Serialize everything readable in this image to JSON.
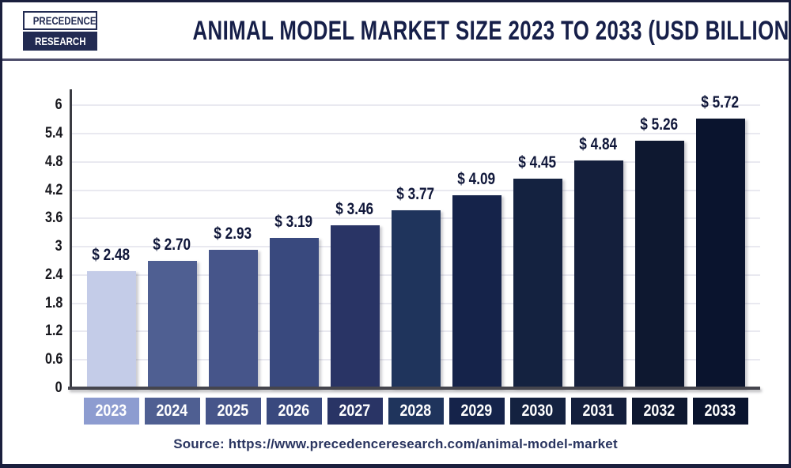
{
  "header": {
    "logo": {
      "line1": "PRECEDENCE",
      "line2": "RESEARCH"
    },
    "title": "ANIMAL MODEL MARKET SIZE 2023 TO 2033 (USD BILLION)"
  },
  "footer": {
    "source_text": "Source: https://www.precedenceresearch.com/animal-model-market"
  },
  "colors": {
    "frame_border": "#1a1f3d",
    "header_divider": "#4d4d6b",
    "title_text": "#161f49",
    "axis_line": "#3a3b42",
    "baseline": "#45454d",
    "gridline": "#e9e9f0",
    "tick_text": "#17171d",
    "value_label_text": "#10173a",
    "year_label_text": "#ffffff",
    "source_text": "#2a3560"
  },
  "chart_data": {
    "type": "bar",
    "title": "Animal Model Market Size 2023 to 2033 (USD Billion)",
    "unit": "USD Billion",
    "categories": [
      "2023",
      "2024",
      "2025",
      "2026",
      "2027",
      "2028",
      "2029",
      "2030",
      "2031",
      "2032",
      "2033"
    ],
    "values": [
      2.48,
      2.7,
      2.93,
      3.19,
      3.46,
      3.77,
      4.09,
      4.45,
      4.84,
      5.26,
      5.72
    ],
    "value_labels": [
      "$ 2.48",
      "$ 2.70",
      "$ 2.93",
      "$ 3.19",
      "$ 3.46",
      "$ 3.77",
      "$ 4.09",
      "$ 4.45",
      "$ 4.84",
      "$ 5.26",
      "$ 5.72"
    ],
    "bar_colors": [
      "#c4cce8",
      "#4f5f92",
      "#46558a",
      "#39497e",
      "#293465",
      "#1f345c",
      "#15234a",
      "#142240",
      "#141f3c",
      "#0e1830",
      "#0a142e"
    ],
    "category_box_colors": [
      "#8d9cd0",
      "#4f5f92",
      "#46558a",
      "#39497e",
      "#293465",
      "#1f345c",
      "#15234a",
      "#142240",
      "#141f3c",
      "#0e1830",
      "#0a142e"
    ],
    "xlabel": "",
    "ylabel": "",
    "ylim": [
      0,
      6
    ],
    "ytick_step": 0.6,
    "ytick_labels": [
      "0",
      "0.6",
      "1.2",
      "1.8",
      "2.4",
      "3",
      "3.6",
      "4.2",
      "4.8",
      "5.4",
      "6"
    ],
    "grid": "horizontal",
    "legend": "none"
  }
}
